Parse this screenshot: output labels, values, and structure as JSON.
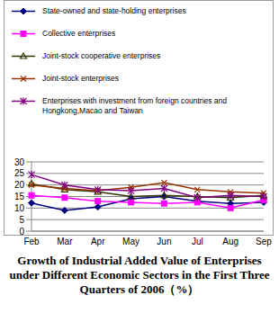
{
  "chart_data": {
    "type": "line",
    "title": "Growth of Industrial Added Value of Enterprises under Different Economic Sectors in the First Three Quarters of 2006（%）",
    "categories": [
      "Feb",
      "Mar",
      "Apr",
      "May",
      "Jun",
      "Jul",
      "Aug",
      "Sep"
    ],
    "series": [
      {
        "name": "State-owned and state-holding enterprises",
        "color": "#000080",
        "marker": "diamond",
        "values": [
          12.2,
          9,
          10.5,
          14,
          15,
          13,
          12,
          12.5
        ]
      },
      {
        "name": "Collective enterprises",
        "color": "#FF00FF",
        "marker": "square",
        "values": [
          15.5,
          14.5,
          13,
          12.5,
          12,
          12.5,
          10,
          13.5
        ]
      },
      {
        "name": "Joint-stock cooperative enterprises",
        "color": "#333300",
        "marker": "triangle",
        "values": [
          20.5,
          18,
          17,
          15,
          15.5,
          15,
          14.5,
          15.5
        ]
      },
      {
        "name": "Joint-stock enterprises",
        "color": "#993300",
        "marker": "x",
        "values": [
          20,
          18.5,
          17.5,
          19,
          21,
          18,
          17,
          16.5
        ]
      },
      {
        "name": "Enterprises with investment from foreign countries and Hongkong,Macao and Taiwan",
        "color": "#800080",
        "marker": "star",
        "values": [
          24.5,
          20,
          18,
          17.5,
          18.5,
          14.5,
          15.5,
          15
        ]
      }
    ],
    "ylim": [
      0,
      30
    ],
    "yticks": [
      0,
      5,
      10,
      15,
      20,
      25,
      30
    ],
    "grid": true,
    "legend": "top"
  }
}
